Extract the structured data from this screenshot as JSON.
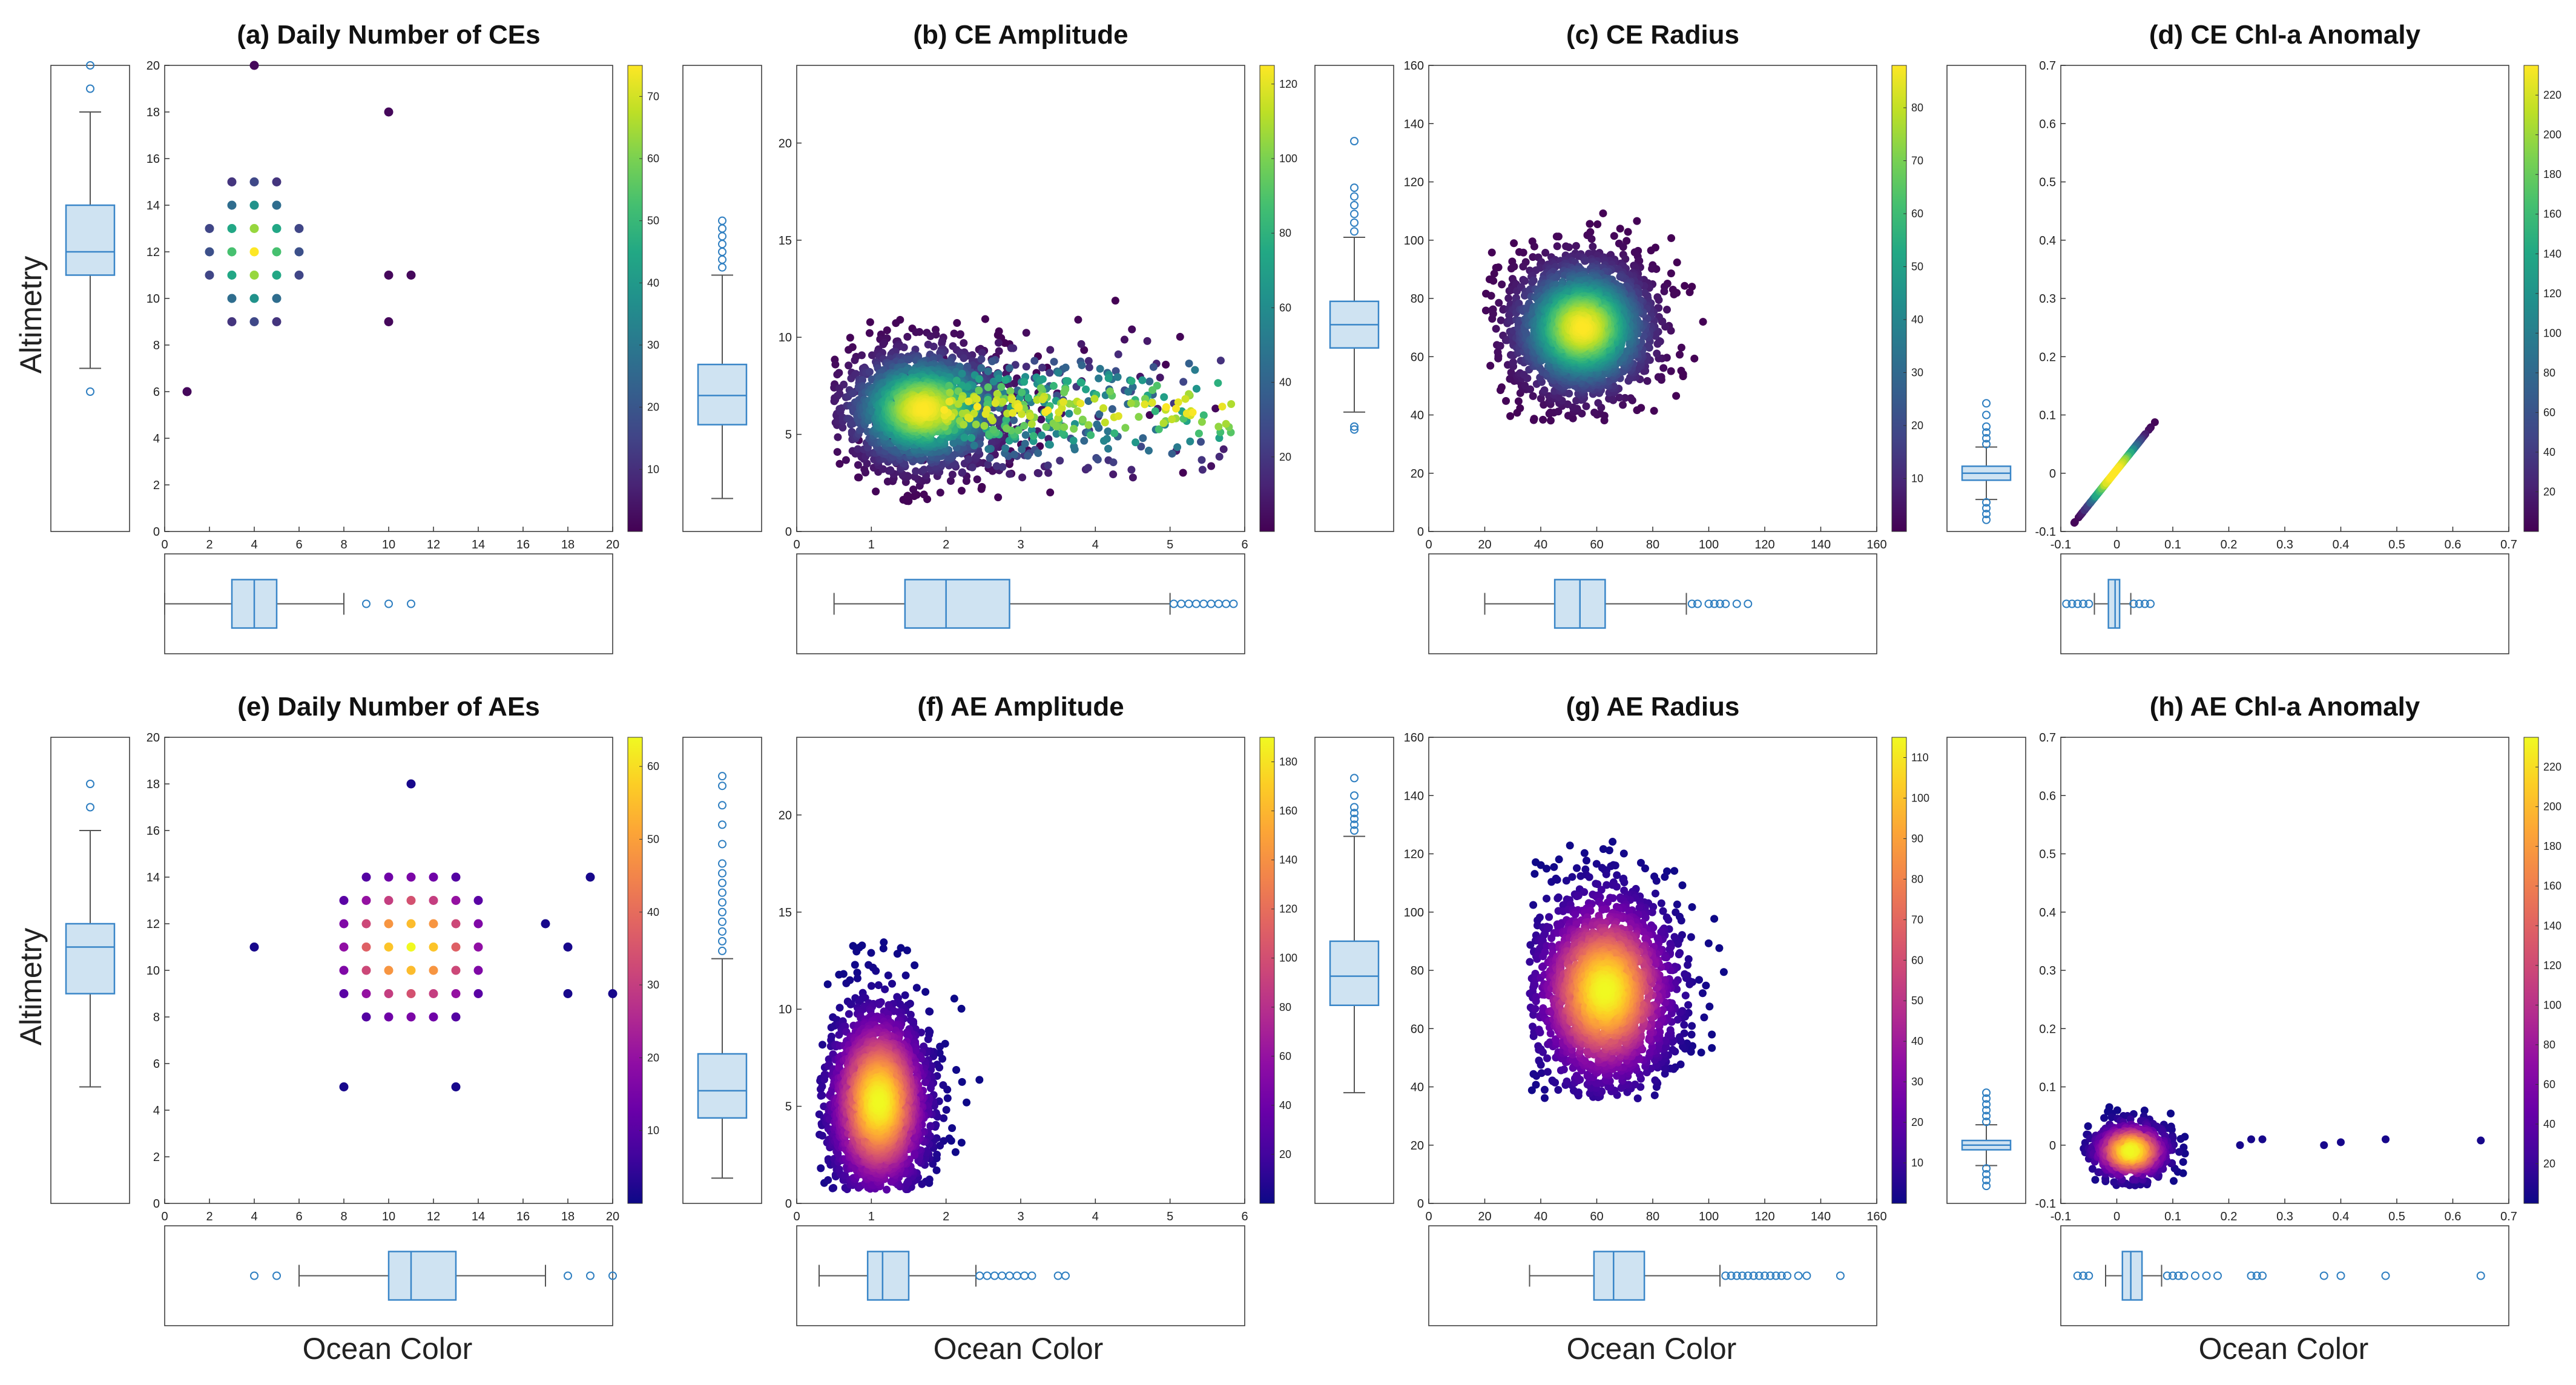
{
  "figure": {
    "shared_ylabel": "Altimetry",
    "shared_xlabel": "Ocean Color"
  },
  "chart_data": [
    {
      "type": "scatter",
      "title": "(a) Daily Number of CEs",
      "xlim": [
        0,
        20
      ],
      "ylim": [
        0,
        20
      ],
      "xticks": [
        0,
        2,
        4,
        6,
        8,
        10,
        12,
        14,
        16,
        18,
        20
      ],
      "yticks": [
        0,
        2,
        4,
        6,
        8,
        10,
        12,
        14,
        16,
        18,
        20
      ],
      "colormap": "viridis",
      "colorbar_ticks": [
        10,
        20,
        30,
        40,
        50,
        60,
        70
      ],
      "colorbar_max": 75,
      "scatter_kind": "grid",
      "grid_center": [
        4,
        12
      ],
      "grid_x_range": [
        0,
        8
      ],
      "grid_y_range": [
        6,
        18
      ],
      "grid_spread": [
        1.6,
        2.3
      ],
      "extra_points": [
        [
          10,
          18
        ],
        [
          10,
          11
        ],
        [
          11,
          11
        ],
        [
          10,
          9
        ],
        [
          4,
          20
        ],
        [
          1,
          6
        ]
      ],
      "box_y": {
        "whisker_low": 7,
        "q1": 11,
        "median": 12,
        "q3": 14,
        "whisker_high": 18,
        "outliers": [
          6,
          19,
          20
        ]
      },
      "box_x": {
        "whisker_low": 0,
        "q1": 3,
        "median": 4,
        "q3": 5,
        "whisker_high": 8,
        "outliers": [
          9,
          10,
          11
        ]
      }
    },
    {
      "type": "scatter",
      "title": "(b) CE Amplitude",
      "xlim": [
        0,
        6
      ],
      "ylim": [
        0,
        24
      ],
      "xticks": [
        0,
        1,
        2,
        3,
        4,
        5,
        6
      ],
      "yticks": [
        0,
        5,
        10,
        15,
        20
      ],
      "colormap": "viridis",
      "colorbar_ticks": [
        20,
        40,
        60,
        80,
        100,
        120
      ],
      "colorbar_max": 125,
      "scatter_kind": "density",
      "center": [
        1.7,
        6.3
      ],
      "spread": [
        0.55,
        1.6
      ],
      "tail": [
        1.3,
        0.25
      ],
      "xclip": [
        0.5,
        5.9
      ],
      "yclip": [
        1.5,
        17
      ],
      "box_y": {
        "whisker_low": 1.7,
        "q1": 5.5,
        "median": 7,
        "q3": 8.6,
        "whisker_high": 13.2,
        "outliers": [
          13.6,
          14.0,
          14.4,
          14.8,
          15.2,
          15.6,
          16.0
        ]
      },
      "box_x": {
        "whisker_low": 0.5,
        "q1": 1.45,
        "median": 2.0,
        "q3": 2.85,
        "whisker_high": 5.0,
        "outliers": [
          5.05,
          5.15,
          5.25,
          5.35,
          5.45,
          5.55,
          5.65,
          5.75,
          5.85
        ]
      }
    },
    {
      "type": "scatter",
      "title": "(c) CE Radius",
      "xlim": [
        0,
        160
      ],
      "ylim": [
        0,
        160
      ],
      "xticks": [
        0,
        20,
        40,
        60,
        80,
        100,
        120,
        140,
        160
      ],
      "yticks": [
        0,
        20,
        40,
        60,
        80,
        100,
        120,
        140,
        160
      ],
      "colormap": "viridis",
      "colorbar_ticks": [
        10,
        20,
        30,
        40,
        50,
        60,
        70,
        80
      ],
      "colorbar_max": 88,
      "scatter_kind": "density",
      "center": [
        55,
        70
      ],
      "spread": [
        13,
        12
      ],
      "tail": [
        0,
        0
      ],
      "xclip": [
        20,
        118
      ],
      "yclip": [
        38,
        135
      ],
      "box_y": {
        "whisker_low": 41,
        "q1": 63,
        "median": 71,
        "q3": 79,
        "whisker_high": 101,
        "outliers": [
          35,
          36,
          103,
          106,
          109,
          112,
          115,
          118,
          134
        ]
      },
      "box_x": {
        "whisker_low": 20,
        "q1": 45,
        "median": 54,
        "q3": 63,
        "whisker_high": 92,
        "outliers": [
          94,
          96,
          100,
          102,
          104,
          106,
          110,
          114
        ]
      }
    },
    {
      "type": "scatter",
      "title": "(d) CE Chl-a Anomaly",
      "xlim": [
        -0.1,
        0.7
      ],
      "ylim": [
        -0.1,
        0.7
      ],
      "xticks": [
        -0.1,
        0,
        0.1,
        0.2,
        0.3,
        0.4,
        0.5,
        0.6,
        0.7
      ],
      "yticks": [
        -0.1,
        0,
        0.1,
        0.2,
        0.3,
        0.4,
        0.5,
        0.6,
        0.7
      ],
      "colormap": "viridis",
      "colorbar_ticks": [
        20,
        40,
        60,
        80,
        100,
        120,
        140,
        160,
        180,
        200,
        220
      ],
      "colorbar_max": 235,
      "scatter_kind": "diagonal",
      "center": [
        -0.005,
        0.0
      ],
      "spread": [
        0.025,
        0.03
      ],
      "xclip": [
        -0.08,
        0.07
      ],
      "yclip": [
        -0.09,
        0.12
      ],
      "box_y": {
        "whisker_low": -0.045,
        "q1": -0.012,
        "median": 0.0,
        "q3": 0.012,
        "whisker_high": 0.045,
        "outliers": [
          -0.08,
          -0.07,
          -0.06,
          -0.05,
          0.05,
          0.06,
          0.07,
          0.08,
          0.1,
          0.12
        ]
      },
      "box_x": {
        "whisker_low": -0.04,
        "q1": -0.015,
        "median": -0.003,
        "q3": 0.005,
        "whisker_high": 0.025,
        "outliers": [
          -0.09,
          -0.08,
          -0.07,
          -0.06,
          -0.05,
          0.03,
          0.04,
          0.05,
          0.06
        ]
      }
    },
    {
      "type": "scatter",
      "title": "(e) Daily Number of AEs",
      "xlim": [
        0,
        20
      ],
      "ylim": [
        0,
        20
      ],
      "xticks": [
        0,
        2,
        4,
        6,
        8,
        10,
        12,
        14,
        16,
        18,
        20
      ],
      "yticks": [
        0,
        2,
        4,
        6,
        8,
        10,
        12,
        14,
        16,
        18,
        20
      ],
      "colormap": "plasma",
      "colorbar_ticks": [
        10,
        20,
        30,
        40,
        50,
        60
      ],
      "colorbar_max": 64,
      "scatter_kind": "grid",
      "grid_center": [
        11,
        11
      ],
      "grid_x_range": [
        5,
        17
      ],
      "grid_y_range": [
        7,
        16
      ],
      "grid_spread": [
        2.6,
        2.4
      ],
      "extra_points": [
        [
          4,
          11
        ],
        [
          8,
          5
        ],
        [
          13,
          5
        ],
        [
          18,
          9
        ],
        [
          19,
          14
        ],
        [
          20,
          9
        ],
        [
          11,
          18
        ],
        [
          17,
          12
        ],
        [
          18,
          11
        ]
      ],
      "box_y": {
        "whisker_low": 5,
        "q1": 9,
        "median": 11,
        "q3": 12,
        "whisker_high": 16,
        "outliers": [
          17,
          18
        ]
      },
      "box_x": {
        "whisker_low": 6,
        "q1": 10,
        "median": 11,
        "q3": 13,
        "whisker_high": 17,
        "outliers": [
          4,
          5,
          18,
          19,
          20
        ]
      }
    },
    {
      "type": "scatter",
      "title": "(f) AE Amplitude",
      "xlim": [
        0,
        6
      ],
      "ylim": [
        0,
        24
      ],
      "xticks": [
        0,
        1,
        2,
        3,
        4,
        5,
        6
      ],
      "yticks": [
        0,
        5,
        10,
        15,
        20
      ],
      "colormap": "plasma",
      "colorbar_ticks": [
        20,
        40,
        60,
        80,
        100,
        120,
        140,
        160,
        180
      ],
      "colorbar_max": 190,
      "scatter_kind": "density",
      "center": [
        1.1,
        5.2
      ],
      "spread": [
        0.35,
        2.5
      ],
      "tail": [
        0,
        0
      ],
      "xclip": [
        0.3,
        3.6
      ],
      "yclip": [
        0.7,
        22.5
      ],
      "box_y": {
        "whisker_low": 1.3,
        "q1": 4.4,
        "median": 5.8,
        "q3": 7.7,
        "whisker_high": 12.6,
        "outliers": [
          13,
          13.5,
          14,
          14.5,
          15,
          15.5,
          16,
          16.5,
          17,
          17.5,
          18.5,
          19.5,
          20.5,
          21.5,
          22
        ]
      },
      "box_x": {
        "whisker_low": 0.3,
        "q1": 0.95,
        "median": 1.15,
        "q3": 1.5,
        "whisker_high": 2.4,
        "outliers": [
          2.45,
          2.55,
          2.65,
          2.75,
          2.85,
          2.95,
          3.05,
          3.15,
          3.5,
          3.6
        ]
      }
    },
    {
      "type": "scatter",
      "title": "(g) AE Radius",
      "xlim": [
        0,
        160
      ],
      "ylim": [
        0,
        160
      ],
      "xticks": [
        0,
        20,
        40,
        60,
        80,
        100,
        120,
        140,
        160
      ],
      "yticks": [
        0,
        20,
        40,
        60,
        80,
        100,
        120,
        140,
        160
      ],
      "colormap": "plasma",
      "colorbar_ticks": [
        10,
        20,
        30,
        40,
        50,
        60,
        70,
        80,
        90,
        100,
        110
      ],
      "colorbar_max": 115,
      "scatter_kind": "density",
      "center": [
        63,
        73
      ],
      "spread": [
        13,
        17
      ],
      "tail": [
        0,
        0
      ],
      "xclip": [
        36,
        148
      ],
      "yclip": [
        36,
        146
      ],
      "box_y": {
        "whisker_low": 38,
        "q1": 68,
        "median": 78,
        "q3": 90,
        "whisker_high": 126,
        "outliers": [
          128,
          130,
          132,
          134,
          136,
          140,
          146
        ]
      },
      "box_x": {
        "whisker_low": 36,
        "q1": 59,
        "median": 66,
        "q3": 77,
        "whisker_high": 104,
        "outliers": [
          106,
          108,
          110,
          112,
          114,
          116,
          118,
          120,
          122,
          124,
          126,
          128,
          132,
          135,
          147
        ]
      }
    },
    {
      "type": "scatter",
      "title": "(h) AE Chl-a Anomaly",
      "xlim": [
        -0.1,
        0.7
      ],
      "ylim": [
        -0.1,
        0.7
      ],
      "xticks": [
        -0.1,
        0,
        0.1,
        0.2,
        0.3,
        0.4,
        0.5,
        0.6,
        0.7
      ],
      "yticks": [
        -0.1,
        0,
        0.1,
        0.2,
        0.3,
        0.4,
        0.5,
        0.6,
        0.7
      ],
      "colormap": "plasma",
      "colorbar_ticks": [
        20,
        40,
        60,
        80,
        100,
        120,
        140,
        160,
        180,
        200,
        220
      ],
      "colorbar_max": 235,
      "scatter_kind": "blob",
      "center": [
        0.025,
        -0.01
      ],
      "spread": [
        0.035,
        0.025
      ],
      "xclip": [
        -0.06,
        0.2
      ],
      "yclip": [
        -0.07,
        0.1
      ],
      "extra_points": [
        [
          0.22,
          0.0
        ],
        [
          0.24,
          0.01
        ],
        [
          0.26,
          0.01
        ],
        [
          0.37,
          0.0
        ],
        [
          0.4,
          0.005
        ],
        [
          0.48,
          0.01
        ],
        [
          0.65,
          0.008
        ]
      ],
      "box_y": {
        "whisker_low": -0.035,
        "q1": -0.008,
        "median": 0.0,
        "q3": 0.008,
        "whisker_high": 0.035,
        "outliers": [
          -0.07,
          -0.06,
          -0.05,
          -0.04,
          0.04,
          0.05,
          0.06,
          0.07,
          0.08,
          0.09
        ]
      },
      "box_x": {
        "whisker_low": -0.02,
        "q1": 0.01,
        "median": 0.025,
        "q3": 0.045,
        "whisker_high": 0.08,
        "outliers": [
          -0.07,
          -0.06,
          -0.05,
          0.09,
          0.1,
          0.11,
          0.12,
          0.14,
          0.16,
          0.18,
          0.24,
          0.25,
          0.26,
          0.37,
          0.4,
          0.48,
          0.65
        ]
      }
    }
  ]
}
